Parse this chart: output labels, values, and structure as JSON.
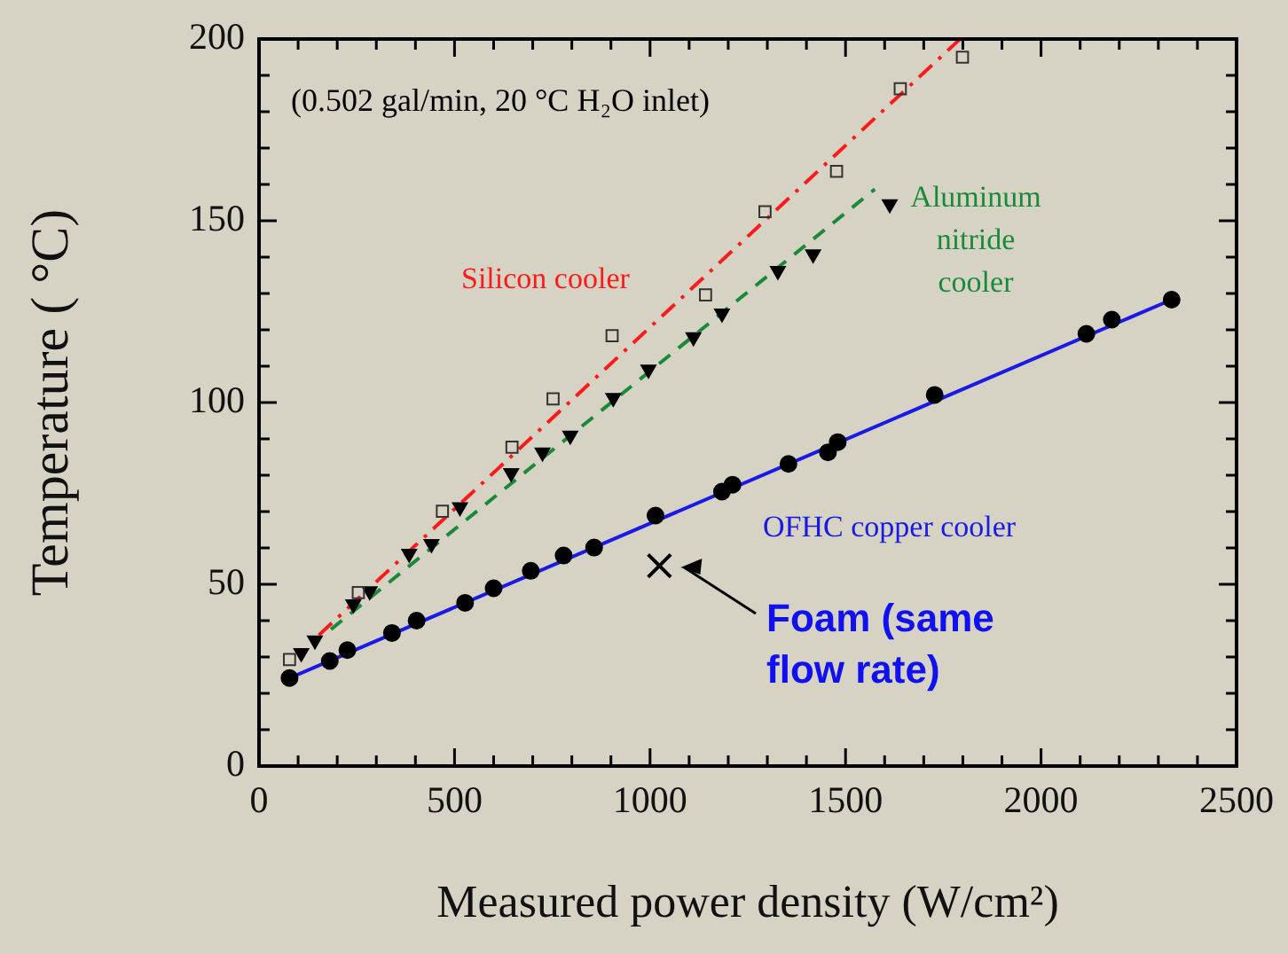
{
  "chart_data": {
    "type": "scatter",
    "xlabel": "Measured power density (W/cm²)",
    "ylabel": "Temperature ( °C)",
    "xlim": [
      0,
      2500
    ],
    "ylim": [
      0,
      200
    ],
    "xticks": [
      0,
      {
        "value": 100,
        "label": null
      },
      {
        "value": 200,
        "label": null
      },
      {
        "value": 300,
        "label": null
      },
      {
        "value": 400,
        "label": null
      },
      500,
      {
        "value": 600,
        "label": null
      },
      {
        "value": 700,
        "label": null
      },
      {
        "value": 800,
        "label": null
      },
      {
        "value": 900,
        "label": null
      },
      1000,
      {
        "value": 1100,
        "label": null
      },
      {
        "value": 1200,
        "label": null
      },
      {
        "value": 1300,
        "label": null
      },
      {
        "value": 1400,
        "label": null
      },
      1500,
      {
        "value": 1600,
        "label": null
      },
      {
        "value": 1700,
        "label": null
      },
      {
        "value": 1800,
        "label": null
      },
      {
        "value": 1900,
        "label": null
      },
      2000,
      {
        "value": 2100,
        "label": null
      },
      {
        "value": 2200,
        "label": null
      },
      {
        "value": 2300,
        "label": null
      },
      {
        "value": 2400,
        "label": null
      },
      2500
    ],
    "yticks": [
      0,
      {
        "value": 10,
        "label": null
      },
      {
        "value": 20,
        "label": null
      },
      {
        "value": 30,
        "label": null
      },
      {
        "value": 40,
        "label": null
      },
      50,
      {
        "value": 60,
        "label": null
      },
      {
        "value": 70,
        "label": null
      },
      {
        "value": 80,
        "label": null
      },
      {
        "value": 90,
        "label": null
      },
      100,
      {
        "value": 110,
        "label": null
      },
      {
        "value": 120,
        "label": null
      },
      {
        "value": 130,
        "label": null
      },
      {
        "value": 140,
        "label": null
      },
      150,
      {
        "value": 160,
        "label": null
      },
      {
        "value": 170,
        "label": null
      },
      {
        "value": 180,
        "label": null
      },
      {
        "value": 190,
        "label": null
      },
      200
    ],
    "grid": false,
    "legend": false,
    "series": [
      {
        "marker": "circle",
        "color": "#000000",
        "x": [
          78,
          181,
          226,
          340,
          403,
          527,
          600,
          695,
          779,
          857,
          1014,
          1184,
          1211,
          1354,
          1455,
          1480,
          1728,
          2116,
          2181,
          2334
        ],
        "values": [
          24.2,
          28.9,
          31.9,
          36.6,
          40,
          44.9,
          48.9,
          53.7,
          57.9,
          60.1,
          68.9,
          75.5,
          77.4,
          83.1,
          86.3,
          89.1,
          102.1,
          118.9,
          122.8,
          128.3
        ]
      },
      {
        "marker": "square",
        "color": "#333333",
        "x": [
          78,
          254,
          469,
          647,
          752,
          903,
          1142,
          1294,
          1477,
          1640,
          1799
        ],
        "values": [
          29.3,
          47.7,
          70.1,
          87.7,
          101,
          118.4,
          129.6,
          152.5,
          163.6,
          186.3,
          195
        ]
      },
      {
        "marker": "triangle",
        "color": "#000000",
        "x": [
          108,
          143,
          241,
          283,
          384,
          441,
          514,
          645,
          725,
          796,
          906,
          996,
          1111,
          1184,
          1327,
          1417,
          1613
        ],
        "values": [
          31.1,
          34.6,
          44.5,
          48.1,
          58.4,
          61.1,
          71.2,
          80.6,
          86.3,
          90.9,
          101.3,
          109.1,
          118,
          124.5,
          136.2,
          140.8,
          154.6
        ]
      },
      {
        "type": "line",
        "name": "OFHC copper cooler",
        "color": "#1a1ae6",
        "line_style": "solid",
        "marker": "none",
        "x": [
          78,
          2334
        ],
        "values": [
          24.2,
          128.3
        ]
      },
      {
        "type": "line",
        "name": "Silicon cooler",
        "color": "#ff1a1a",
        "line_style": "dashed",
        "marker": "none",
        "x": [
          153,
          1793
        ],
        "values": [
          36,
          200
        ]
      },
      {
        "type": "line",
        "name": "Aluminum nitride cooler",
        "color": "#1a8a3a",
        "line_style": "dashed",
        "marker": "none",
        "x": [
          184,
          1575
        ],
        "values": [
          37.6,
          158.7
        ]
      },
      {
        "marker": "cross",
        "color": "#000000",
        "x": [
          1024
        ],
        "values": [
          55.1
        ]
      }
    ],
    "annotations": [
      "(0.502 gal/min, 20 °C H₂O inlet)",
      "Foam (same flow rate)"
    ]
  }
}
